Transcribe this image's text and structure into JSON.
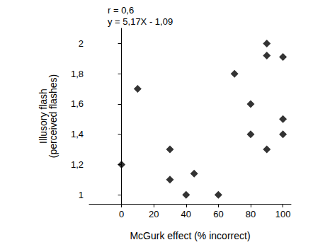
{
  "chart_data": {
    "type": "scatter",
    "x_label": "McGurk effect (% incorrect)",
    "y_label": "Illusory flash\n(perceived flashes)",
    "annotations": [
      "r = 0,6",
      "y = 5,17X - 1,09"
    ],
    "x": [
      0,
      10,
      30,
      30,
      40,
      45,
      60,
      70,
      80,
      80,
      90,
      90,
      90,
      100,
      100,
      100
    ],
    "values": [
      1.2,
      1.7,
      1.3,
      1.1,
      1.0,
      1.14,
      1.0,
      1.8,
      1.6,
      1.4,
      2.0,
      1.92,
      1.3,
      1.91,
      1.5,
      1.4
    ],
    "color": "#000000",
    "marker": "diamond",
    "xlim": [
      -20,
      105
    ],
    "xticks": [
      0,
      20,
      40,
      60,
      80,
      100
    ],
    "ylim": [
      0.94,
      2.1
    ],
    "yticks": [
      1,
      {
        "value": 1.2,
        "label": "1,2"
      },
      {
        "value": 1.4,
        "label": "1,4"
      },
      {
        "value": 1.6,
        "label": "1,6"
      },
      {
        "value": 1.8,
        "label": "1,8"
      },
      2
    ],
    "grid": false
  }
}
